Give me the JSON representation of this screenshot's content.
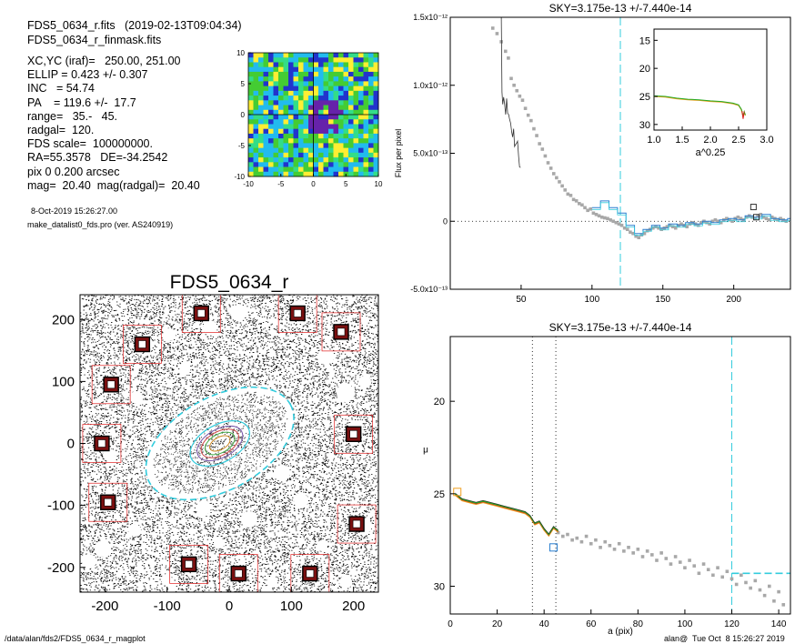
{
  "header": {
    "file_line": "FDS5_0634_r.fits   (2019-02-13T09:04:34)",
    "mask_line": "FDS5_0634_r_finmask.fits",
    "params": [
      "XC,YC (iraf)=   250.00, 251.00",
      "ELLIP = 0.423 +/- 0.307",
      "INC   = 54.74",
      "PA    = 119.6 +/-  17.7",
      "range=   35.-   45.",
      "radgal=  120.",
      "FDS scale=  100000000.",
      "RA=55.3578   DE=-34.2542",
      "pix 0 0.200 arcsec",
      "mag=  20.40  mag(radgal)=  20.40"
    ],
    "date_line": "8-Oct-2019 15:26:27.00",
    "program_line": "make_datalist0_fds.pro (ver. AS240919)"
  },
  "footer": {
    "path": "/data/alan/fds2/FDS5_0634_r_magplot",
    "user_time": "alan@  Tue Oct  8 15:26:27 2019"
  },
  "colors": {
    "cyan": "#33ccdd",
    "red_box": "#e02020",
    "grey_points": "#a8a8a8",
    "green": "#22aa22",
    "orange": "#f0a020",
    "blue_step": "#2a7fd0",
    "map_blue": "#2233cc",
    "map_green": "#44cc33",
    "map_cyan": "#22bbee"
  },
  "chart_data": [
    {
      "id": "residual_map",
      "type": "heatmap",
      "title": "",
      "xlabel": "",
      "ylabel": "",
      "xlim": [
        -10,
        10
      ],
      "ylim": [
        -10,
        10
      ],
      "xticks": [
        "-10",
        "-5",
        "0",
        "5",
        "10"
      ],
      "yticks": [
        "10",
        "5",
        "0",
        "-5",
        "-10"
      ]
    },
    {
      "id": "image_map",
      "type": "scatter",
      "title": "FDS5_0634_r",
      "xlabel": "",
      "ylabel": "",
      "xlim": [
        -240,
        240
      ],
      "ylim": [
        -240,
        240
      ],
      "xticks": [
        "-200",
        "-100",
        "0",
        "100",
        "200"
      ],
      "yticks": [
        "200",
        "100",
        "0",
        "-100",
        "-200"
      ],
      "ellipse": {
        "center": [
          -15,
          0
        ],
        "a": 120,
        "b": 69,
        "pa_deg": 119.6
      },
      "inner_ellipses": [
        {
          "a": 40,
          "b": 23
        },
        {
          "a": 33,
          "b": 19
        },
        {
          "a": 26,
          "b": 15
        },
        {
          "a": 18,
          "b": 10
        }
      ],
      "masked_sources": [
        {
          "x": -45,
          "y": 210
        },
        {
          "x": 110,
          "y": 210
        },
        {
          "x": -140,
          "y": 160
        },
        {
          "x": 180,
          "y": 180
        },
        {
          "x": -190,
          "y": 95
        },
        {
          "x": -205,
          "y": 0
        },
        {
          "x": 200,
          "y": 15
        },
        {
          "x": -195,
          "y": -95
        },
        {
          "x": 205,
          "y": -130
        },
        {
          "x": -65,
          "y": -195
        },
        {
          "x": 15,
          "y": -210
        },
        {
          "x": 130,
          "y": -210
        }
      ]
    },
    {
      "id": "sky_profile",
      "type": "scatter",
      "title": "SKY=3.175e-13 +/-7.440e-14",
      "xlabel": "",
      "ylabel": "Flux per pixel",
      "xlim": [
        0,
        240
      ],
      "ylim": [
        -5e-13,
        1.5e-12
      ],
      "xticks": [
        "50",
        "100",
        "150",
        "200"
      ],
      "yticks": [
        "1.5x10⁻¹²",
        "1.0x10⁻¹²",
        "5.0x10⁻¹³",
        "0",
        "-5.0x10⁻¹³"
      ],
      "ytick_values": [
        1.5e-12,
        1e-12,
        5e-13,
        0,
        -5e-13
      ],
      "vline_cyan": 120,
      "points": [
        [
          30,
          1.42e-12
        ],
        [
          33,
          1.38e-12
        ],
        [
          36,
          1.32e-12
        ],
        [
          39,
          1.25e-12
        ],
        [
          41,
          1.2e-12
        ],
        [
          43,
          1.05e-12
        ],
        [
          45,
          1e-12
        ],
        [
          47,
          9.6e-13
        ],
        [
          49,
          9.2e-13
        ],
        [
          51,
          8.9e-13
        ],
        [
          53,
          8.3e-13
        ],
        [
          55,
          7.8e-13
        ],
        [
          57,
          7.4e-13
        ],
        [
          59,
          6.8e-13
        ],
        [
          61,
          6.3e-13
        ],
        [
          63,
          5.7e-13
        ],
        [
          65,
          5.3e-13
        ],
        [
          67,
          4.8e-13
        ],
        [
          69,
          4.3e-13
        ],
        [
          71,
          3.9e-13
        ],
        [
          73,
          3.5e-13
        ],
        [
          75,
          3.2e-13
        ],
        [
          77,
          2.9e-13
        ],
        [
          79,
          2.6e-13
        ],
        [
          81,
          2.3e-13
        ],
        [
          83,
          2e-13
        ],
        [
          85,
          1.9e-13
        ],
        [
          87,
          1.6e-13
        ],
        [
          89,
          1.5e-13
        ],
        [
          91,
          1.3e-13
        ],
        [
          93,
          1.2e-13
        ],
        [
          95,
          1e-13
        ],
        [
          97,
          8e-14
        ],
        [
          99,
          9e-14
        ],
        [
          101,
          6e-14
        ],
        [
          103,
          5e-14
        ],
        [
          105,
          4e-14
        ],
        [
          107,
          3e-14
        ],
        [
          109,
          2.5e-14
        ],
        [
          111,
          2e-14
        ],
        [
          113,
          1e-14
        ],
        [
          115,
          0
        ],
        [
          117,
          -1e-14
        ],
        [
          119,
          -2e-14
        ],
        [
          121,
          -3e-14
        ],
        [
          123,
          -5e-14
        ],
        [
          125,
          -6e-14
        ],
        [
          127,
          -8e-14
        ],
        [
          129,
          -9e-14
        ],
        [
          131,
          -1.1e-13
        ],
        [
          133,
          -1.2e-13
        ],
        [
          135,
          -1e-13
        ],
        [
          137,
          -9e-14
        ],
        [
          139,
          -7e-14
        ],
        [
          141,
          -6e-14
        ],
        [
          143,
          -5e-14
        ],
        [
          145,
          -4e-14
        ],
        [
          147,
          -5e-14
        ],
        [
          149,
          -6e-14
        ],
        [
          151,
          -5e-14
        ],
        [
          153,
          -4e-14
        ],
        [
          155,
          -3e-14
        ],
        [
          157,
          -4e-14
        ],
        [
          159,
          -5e-14
        ],
        [
          161,
          -3e-14
        ],
        [
          163,
          -2e-14
        ],
        [
          165,
          -3e-14
        ],
        [
          167,
          -4e-14
        ],
        [
          169,
          -2e-14
        ],
        [
          171,
          -1e-14
        ],
        [
          173,
          -2e-14
        ],
        [
          175,
          -3e-14
        ],
        [
          177,
          -1e-14
        ],
        [
          179,
          0
        ],
        [
          181,
          -1e-14
        ],
        [
          183,
          -2e-14
        ],
        [
          185,
          0
        ],
        [
          187,
          1e-14
        ],
        [
          189,
          0
        ],
        [
          191,
          -1e-14
        ],
        [
          193,
          1e-14
        ],
        [
          195,
          2e-14
        ],
        [
          197,
          1e-14
        ],
        [
          199,
          0
        ],
        [
          201,
          2e-14
        ],
        [
          203,
          3e-14
        ],
        [
          205,
          2e-14
        ],
        [
          207,
          1e-14
        ],
        [
          209,
          3e-14
        ],
        [
          211,
          4e-14
        ],
        [
          213,
          3e-14
        ],
        [
          215,
          2e-14
        ],
        [
          217,
          4e-14
        ],
        [
          219,
          5e-14
        ],
        [
          221,
          3e-14
        ],
        [
          223,
          2e-14
        ],
        [
          225,
          1e-14
        ],
        [
          227,
          3e-14
        ],
        [
          229,
          2e-14
        ],
        [
          231,
          1e-14
        ],
        [
          233,
          2e-14
        ],
        [
          235,
          1e-14
        ],
        [
          237,
          0
        ]
      ],
      "steps": [
        [
          100,
          1e-13
        ],
        [
          106,
          1.5e-13
        ],
        [
          112,
          1e-13
        ],
        [
          118,
          6e-14
        ],
        [
          124,
          -3e-14
        ],
        [
          130,
          -9e-14
        ],
        [
          136,
          -6e-14
        ],
        [
          142,
          -3e-14
        ],
        [
          148,
          -5e-14
        ],
        [
          154,
          -2e-14
        ],
        [
          160,
          -3e-14
        ],
        [
          166,
          -1e-14
        ],
        [
          172,
          -2e-14
        ],
        [
          178,
          0
        ],
        [
          184,
          -1e-14
        ],
        [
          190,
          1e-14
        ],
        [
          196,
          2e-14
        ],
        [
          202,
          1e-14
        ],
        [
          208,
          4e-14
        ],
        [
          214,
          3e-14
        ],
        [
          220,
          5e-14
        ],
        [
          226,
          2e-14
        ],
        [
          232,
          1e-14
        ],
        [
          238,
          2e-14
        ]
      ],
      "inset": {
        "xlabel": "a^0.25",
        "xlim": [
          1.0,
          3.0
        ],
        "ylim": [
          31,
          13
        ],
        "xticks": [
          "1.0",
          "1.5",
          "2.0",
          "2.5",
          "3.0"
        ],
        "yticks": [
          "15",
          "20",
          "25",
          "30"
        ],
        "line": [
          [
            1.0,
            25.0
          ],
          [
            1.2,
            25.1
          ],
          [
            1.4,
            25.4
          ],
          [
            1.6,
            25.6
          ],
          [
            1.8,
            25.7
          ],
          [
            2.0,
            25.9
          ],
          [
            2.2,
            26.0
          ],
          [
            2.4,
            26.3
          ],
          [
            2.5,
            26.6
          ],
          [
            2.55,
            27.4
          ],
          [
            2.58,
            28.6
          ],
          [
            2.6,
            27.8
          ],
          [
            2.62,
            28.4
          ]
        ]
      }
    },
    {
      "id": "surface_brightness",
      "type": "line",
      "title": "SKY=3.175e-13 +/-7.440e-14",
      "xlabel": "a (pix)",
      "ylabel": "μ",
      "xlim": [
        0,
        145
      ],
      "ylim": [
        31.5,
        16.5
      ],
      "xticks": [
        "0",
        "20",
        "40",
        "60",
        "80",
        "100",
        "120",
        "140"
      ],
      "yticks": [
        "20",
        "25",
        "30"
      ],
      "vlines_dotted": [
        35,
        45
      ],
      "vline_cyan": 120,
      "hline_cyan": {
        "y": 29.3,
        "from": 120,
        "to": 145
      },
      "profile": [
        [
          2,
          25.0
        ],
        [
          5,
          25.3
        ],
        [
          8,
          25.4
        ],
        [
          11,
          25.5
        ],
        [
          14,
          25.4
        ],
        [
          17,
          25.5
        ],
        [
          20,
          25.6
        ],
        [
          23,
          25.7
        ],
        [
          26,
          25.8
        ],
        [
          29,
          25.9
        ],
        [
          32,
          26.0
        ],
        [
          34,
          26.2
        ],
        [
          36,
          26.6
        ],
        [
          38,
          26.5
        ],
        [
          40,
          26.9
        ],
        [
          42,
          27.2
        ],
        [
          44,
          26.8
        ],
        [
          46,
          27.0
        ]
      ],
      "points": [
        [
          46,
          27.1
        ],
        [
          48,
          27.3
        ],
        [
          50,
          27.2
        ],
        [
          52,
          27.5
        ],
        [
          54,
          27.4
        ],
        [
          56,
          27.6
        ],
        [
          58,
          27.3
        ],
        [
          60,
          27.7
        ],
        [
          62,
          27.5
        ],
        [
          64,
          27.9
        ],
        [
          66,
          27.6
        ],
        [
          68,
          27.8
        ],
        [
          70,
          28.0
        ],
        [
          72,
          27.7
        ],
        [
          74,
          28.1
        ],
        [
          76,
          27.9
        ],
        [
          78,
          28.2
        ],
        [
          80,
          28.0
        ],
        [
          82,
          28.4
        ],
        [
          84,
          28.1
        ],
        [
          86,
          28.3
        ],
        [
          88,
          28.6
        ],
        [
          90,
          28.2
        ],
        [
          92,
          28.5
        ],
        [
          94,
          28.8
        ],
        [
          96,
          28.4
        ],
        [
          98,
          28.7
        ],
        [
          100,
          29.0
        ],
        [
          102,
          28.6
        ],
        [
          104,
          28.9
        ],
        [
          106,
          29.3
        ],
        [
          108,
          28.8
        ],
        [
          110,
          29.1
        ],
        [
          112,
          29.4
        ],
        [
          114,
          29.0
        ],
        [
          116,
          29.5
        ],
        [
          118,
          29.2
        ],
        [
          120,
          29.6
        ],
        [
          122,
          29.9
        ],
        [
          124,
          29.4
        ],
        [
          126,
          29.8
        ],
        [
          128,
          30.1
        ],
        [
          130,
          29.7
        ],
        [
          132,
          30.2
        ],
        [
          134,
          30.5
        ],
        [
          136,
          30.0
        ],
        [
          138,
          30.8
        ],
        [
          140,
          30.3
        ],
        [
          142,
          31.0
        ]
      ],
      "markers": [
        {
          "x": 3,
          "y": 24.9,
          "color": "orange"
        },
        {
          "x": 44,
          "y": 27.9,
          "color": "blue"
        }
      ]
    }
  ]
}
